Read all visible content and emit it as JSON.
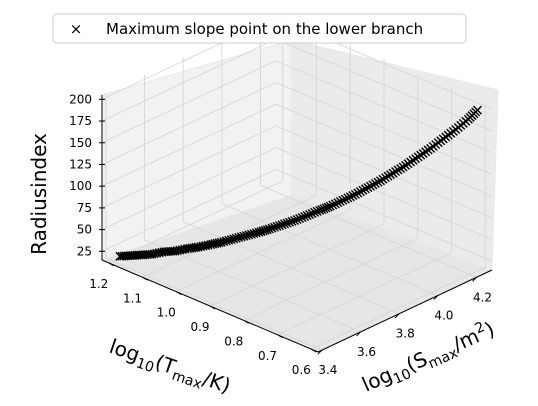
{
  "chart_data": {
    "type": "scatter",
    "projection": "3d",
    "grid": true,
    "legend_position": "top-center",
    "marker": "x",
    "marker_color": "#000000",
    "zlabel": "Radiusindex",
    "zlim": [
      15,
      205
    ],
    "xlim": [
      0.58,
      1.22
    ],
    "ylim": [
      3.38,
      4.28
    ],
    "x_ticks": [
      "1.2",
      "1.1",
      "1.0",
      "0.9",
      "0.8",
      "0.7",
      "0.6"
    ],
    "y_ticks": [
      "3.4",
      "3.6",
      "3.8",
      "4.0",
      "4.2"
    ],
    "z_ticks": [
      "25",
      "50",
      "75",
      "100",
      "125",
      "150",
      "175",
      "200"
    ],
    "series": [
      {
        "name": "Maximum slope point on the lower branch",
        "x_logT": [
          1.19,
          1.17,
          1.15,
          1.13,
          1.11,
          1.09,
          1.07,
          1.05,
          1.03,
          1.01,
          0.99,
          0.97,
          0.95,
          0.93,
          0.91,
          0.89,
          0.87,
          0.85,
          0.83,
          0.81,
          0.79,
          0.77,
          0.75,
          0.73,
          0.71,
          0.69,
          0.67,
          0.65,
          0.63,
          0.61,
          0.6
        ],
        "y_logS": [
          3.42,
          3.44,
          3.46,
          3.48,
          3.51,
          3.53,
          3.56,
          3.58,
          3.61,
          3.63,
          3.66,
          3.69,
          3.72,
          3.74,
          3.77,
          3.8,
          3.83,
          3.86,
          3.88,
          3.91,
          3.94,
          3.97,
          4.0,
          4.03,
          4.06,
          4.09,
          4.12,
          4.15,
          4.18,
          4.21,
          4.24
        ],
        "z": [
          20,
          22,
          24,
          26,
          29,
          31,
          34,
          37,
          40,
          44,
          48,
          52,
          56,
          61,
          66,
          71,
          77,
          83,
          89,
          96,
          103,
          111,
          119,
          128,
          137,
          147,
          157,
          168,
          179,
          191,
          200
        ]
      }
    ]
  },
  "axes": {
    "x_title_base": "log",
    "x_title_sub": "10",
    "x_title_paren": "(T",
    "x_title_max": "max",
    "x_title_unit": "/K)",
    "y_title_base": "log",
    "y_title_sub": "10",
    "y_title_paren": "(S",
    "y_title_max": "max",
    "y_title_unit": "/m",
    "y_title_sup": "2",
    "y_title_close": ")"
  },
  "legend": {
    "symbol": "×"
  }
}
